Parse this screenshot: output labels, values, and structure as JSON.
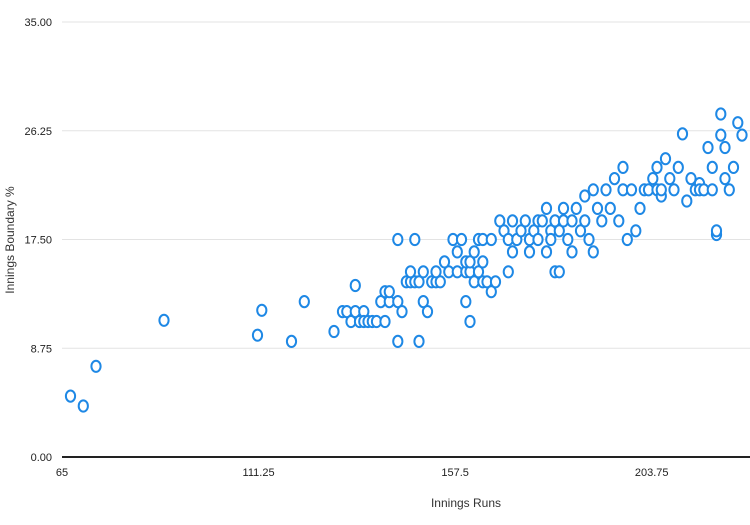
{
  "chart_data": {
    "type": "scatter",
    "title": "",
    "xlabel": "Innings Runs",
    "ylabel": "Innings Boundary %",
    "xlim": [
      65,
      225
    ],
    "ylim": [
      0,
      35
    ],
    "x_ticks": [
      "65",
      "111.25",
      "157.5",
      "203.75"
    ],
    "y_ticks": [
      "0.00",
      "8.75",
      "17.50",
      "26.25",
      "35.00"
    ],
    "grid": "horizontal",
    "legend": "none",
    "marker_color": "#1e88e5",
    "series": [
      {
        "points": [
          [
            67,
            4.9
          ],
          [
            70,
            4.1
          ],
          [
            73,
            7.3
          ],
          [
            89,
            11.0
          ],
          [
            111,
            9.8
          ],
          [
            112,
            11.8
          ],
          [
            119,
            9.3
          ],
          [
            122,
            12.5
          ],
          [
            129,
            10.1
          ],
          [
            131,
            11.7
          ],
          [
            132,
            11.7
          ],
          [
            133,
            10.9
          ],
          [
            134,
            11.7
          ],
          [
            134,
            13.8
          ],
          [
            135,
            10.9
          ],
          [
            136,
            11.7
          ],
          [
            136,
            10.9
          ],
          [
            137,
            10.9
          ],
          [
            138,
            10.9
          ],
          [
            139,
            10.9
          ],
          [
            140,
            12.5
          ],
          [
            141,
            10.9
          ],
          [
            141,
            13.3
          ],
          [
            142,
            12.5
          ],
          [
            142,
            13.3
          ],
          [
            144,
            17.5
          ],
          [
            144,
            9.3
          ],
          [
            144,
            12.5
          ],
          [
            145,
            11.7
          ],
          [
            146,
            14.1
          ],
          [
            147,
            14.1
          ],
          [
            147,
            14.9
          ],
          [
            148,
            14.1
          ],
          [
            148,
            17.5
          ],
          [
            149,
            14.1
          ],
          [
            149,
            9.3
          ],
          [
            150,
            14.9
          ],
          [
            150,
            12.5
          ],
          [
            151,
            11.7
          ],
          [
            152,
            14.1
          ],
          [
            153,
            14.1
          ],
          [
            153,
            14.9
          ],
          [
            154,
            14.1
          ],
          [
            155,
            15.7
          ],
          [
            156,
            14.9
          ],
          [
            157,
            17.5
          ],
          [
            158,
            16.5
          ],
          [
            158,
            14.9
          ],
          [
            159,
            17.5
          ],
          [
            160,
            12.5
          ],
          [
            160,
            14.9
          ],
          [
            160,
            15.7
          ],
          [
            161,
            14.9
          ],
          [
            161,
            10.9
          ],
          [
            161,
            15.7
          ],
          [
            162,
            14.1
          ],
          [
            162,
            16.5
          ],
          [
            163,
            17.5
          ],
          [
            163,
            14.9
          ],
          [
            164,
            14.1
          ],
          [
            164,
            17.5
          ],
          [
            164,
            15.7
          ],
          [
            165,
            14.1
          ],
          [
            166,
            17.5
          ],
          [
            166,
            13.3
          ],
          [
            167,
            14.1
          ],
          [
            168,
            19.0
          ],
          [
            169,
            18.2
          ],
          [
            170,
            17.5
          ],
          [
            170,
            14.9
          ],
          [
            171,
            16.5
          ],
          [
            171,
            19.0
          ],
          [
            172,
            17.5
          ],
          [
            173,
            18.2
          ],
          [
            174,
            19.0
          ],
          [
            175,
            17.5
          ],
          [
            175,
            16.5
          ],
          [
            176,
            18.2
          ],
          [
            177,
            17.5
          ],
          [
            177,
            19.0
          ],
          [
            178,
            19.0
          ],
          [
            179,
            16.5
          ],
          [
            179,
            20.0
          ],
          [
            180,
            18.2
          ],
          [
            180,
            17.5
          ],
          [
            181,
            19.0
          ],
          [
            181,
            14.9
          ],
          [
            182,
            18.2
          ],
          [
            182,
            14.9
          ],
          [
            183,
            19.0
          ],
          [
            183,
            20.0
          ],
          [
            184,
            17.5
          ],
          [
            185,
            19.0
          ],
          [
            185,
            16.5
          ],
          [
            186,
            20.0
          ],
          [
            187,
            18.2
          ],
          [
            188,
            19.0
          ],
          [
            188,
            21.0
          ],
          [
            189,
            17.5
          ],
          [
            190,
            16.5
          ],
          [
            190,
            21.5
          ],
          [
            191,
            20.0
          ],
          [
            192,
            19.0
          ],
          [
            193,
            21.5
          ],
          [
            194,
            20.0
          ],
          [
            195,
            22.4
          ],
          [
            196,
            19.0
          ],
          [
            197,
            23.3
          ],
          [
            197,
            21.5
          ],
          [
            198,
            17.5
          ],
          [
            199,
            21.5
          ],
          [
            200,
            18.2
          ],
          [
            201,
            20.0
          ],
          [
            202,
            21.5
          ],
          [
            203,
            21.5
          ],
          [
            204,
            22.4
          ],
          [
            205,
            23.3
          ],
          [
            205,
            21.5
          ],
          [
            206,
            21.0
          ],
          [
            206,
            21.5
          ],
          [
            207,
            24.0
          ],
          [
            208,
            22.4
          ],
          [
            209,
            21.5
          ],
          [
            210,
            23.3
          ],
          [
            211,
            26.0
          ],
          [
            212,
            20.6
          ],
          [
            213,
            22.4
          ],
          [
            214,
            21.5
          ],
          [
            215,
            22.0
          ],
          [
            215,
            21.5
          ],
          [
            216,
            21.5
          ],
          [
            217,
            24.9
          ],
          [
            218,
            23.3
          ],
          [
            218,
            21.5
          ],
          [
            219,
            17.9
          ],
          [
            219,
            18.2
          ],
          [
            220,
            25.9
          ],
          [
            220,
            27.6
          ],
          [
            221,
            24.9
          ],
          [
            221,
            22.4
          ],
          [
            222,
            21.5
          ],
          [
            223,
            23.3
          ],
          [
            224,
            26.9
          ],
          [
            225,
            25.9
          ]
        ]
      }
    ]
  }
}
